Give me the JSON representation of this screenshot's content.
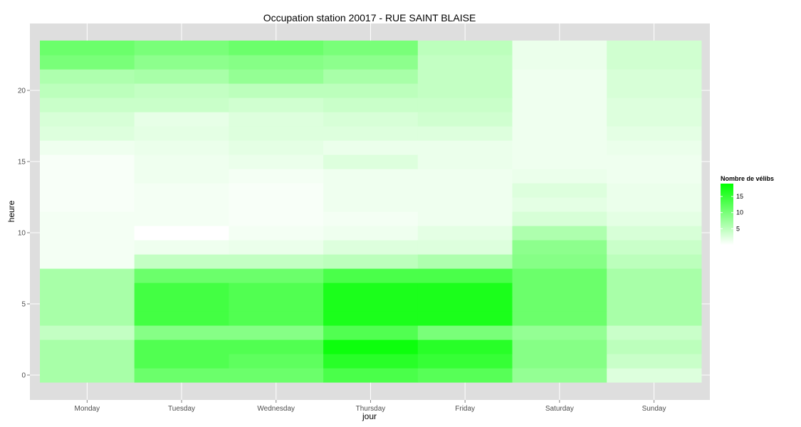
{
  "chart_data": {
    "type": "heatmap",
    "title": "Occupation station 20017 - RUE SAINT BLAISE",
    "xlabel": "jour",
    "ylabel": "heure",
    "x_categories": [
      "Monday",
      "Tuesday",
      "Wednesday",
      "Thursday",
      "Friday",
      "Saturday",
      "Sunday"
    ],
    "y_values": [
      0,
      1,
      2,
      3,
      4,
      5,
      6,
      7,
      8,
      9,
      10,
      11,
      12,
      13,
      14,
      15,
      16,
      17,
      18,
      19,
      20,
      21,
      22,
      23
    ],
    "y_ticks": [
      0,
      5,
      10,
      15,
      20
    ],
    "ylim": [
      -0.5,
      23.5
    ],
    "grid": true,
    "legend": {
      "title": "Nombre de vélibs",
      "breaks": [
        5,
        10,
        15
      ],
      "placement": "right",
      "low_color": "#ffffff",
      "high_color": "#00ff00",
      "min": 0,
      "max": 19
    },
    "values": [
      [
        6.5,
        11,
        11,
        13.5,
        12.5,
        8,
        2.5
      ],
      [
        6.5,
        13,
        12,
        16,
        15,
        9,
        4
      ],
      [
        6.5,
        13,
        13,
        18,
        16,
        9,
        5
      ],
      [
        4.5,
        9,
        9,
        13,
        10,
        8,
        4
      ],
      [
        6.5,
        14,
        13,
        17,
        17,
        11,
        6.5
      ],
      [
        6.5,
        14,
        13,
        17,
        17,
        11,
        6.5
      ],
      [
        6.5,
        14,
        13,
        17,
        17,
        11,
        6.5
      ],
      [
        6.5,
        11,
        11,
        13.5,
        13.5,
        11,
        6.5
      ],
      [
        0.8,
        4.5,
        4.5,
        5,
        6,
        9,
        5
      ],
      [
        0.8,
        1.2,
        1.5,
        2.5,
        2.5,
        8.5,
        4
      ],
      [
        0.8,
        0,
        0.8,
        1.2,
        2,
        6,
        3
      ],
      [
        0.8,
        0.8,
        0.5,
        0.8,
        1.2,
        3,
        2
      ],
      [
        0.5,
        0.8,
        0.5,
        1.2,
        1.2,
        2,
        1.5
      ],
      [
        0.5,
        0.8,
        0.5,
        1.2,
        1.2,
        2.5,
        1.5
      ],
      [
        0.5,
        1.2,
        0.8,
        1.2,
        1.2,
        1.5,
        1.2
      ],
      [
        0.5,
        1.2,
        1.5,
        2.5,
        1.5,
        1.2,
        1.2
      ],
      [
        1.2,
        1.5,
        2,
        1.5,
        1.5,
        1.2,
        1.5
      ],
      [
        2.5,
        2,
        2.5,
        2.5,
        2.5,
        1.2,
        2
      ],
      [
        3,
        1.8,
        2.5,
        3,
        3.5,
        1.2,
        2.5
      ],
      [
        4,
        4,
        3.5,
        4,
        4,
        1.2,
        2.5
      ],
      [
        5,
        4.5,
        5,
        5,
        4.5,
        1.2,
        3
      ],
      [
        6,
        6.5,
        8,
        6.5,
        4.5,
        1.2,
        3
      ],
      [
        10,
        8.5,
        9,
        8.5,
        4.5,
        1.5,
        3.5
      ],
      [
        11,
        10,
        11,
        10,
        5,
        1.5,
        3.5
      ]
    ]
  }
}
